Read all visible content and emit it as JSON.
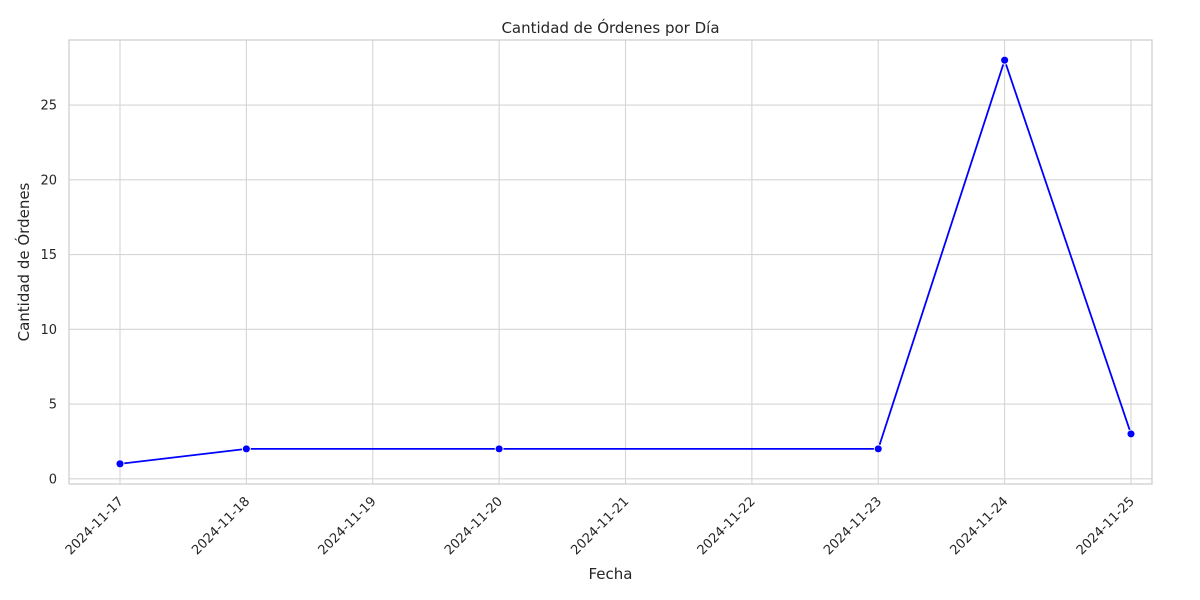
{
  "chart_data": {
    "type": "line",
    "title": "Cantidad de Órdenes por Día",
    "xlabel": "Fecha",
    "ylabel": "Cantidad de Órdenes",
    "x_ticks": [
      "2024-11-17",
      "2024-11-18",
      "2024-11-19",
      "2024-11-20",
      "2024-11-21",
      "2024-11-22",
      "2024-11-23",
      "2024-11-24",
      "2024-11-25"
    ],
    "y_ticks": [
      0,
      5,
      10,
      15,
      20,
      25
    ],
    "ylim": [
      -0.35,
      29.35
    ],
    "grid": true,
    "line_color": "#0000ff",
    "marker_color": "#0000ff",
    "series": [
      {
        "x": [
          "2024-11-17",
          "2024-11-18",
          "2024-11-20",
          "2024-11-23",
          "2024-11-24",
          "2024-11-25"
        ],
        "values": [
          1,
          2,
          2,
          2,
          28,
          3
        ]
      }
    ]
  }
}
